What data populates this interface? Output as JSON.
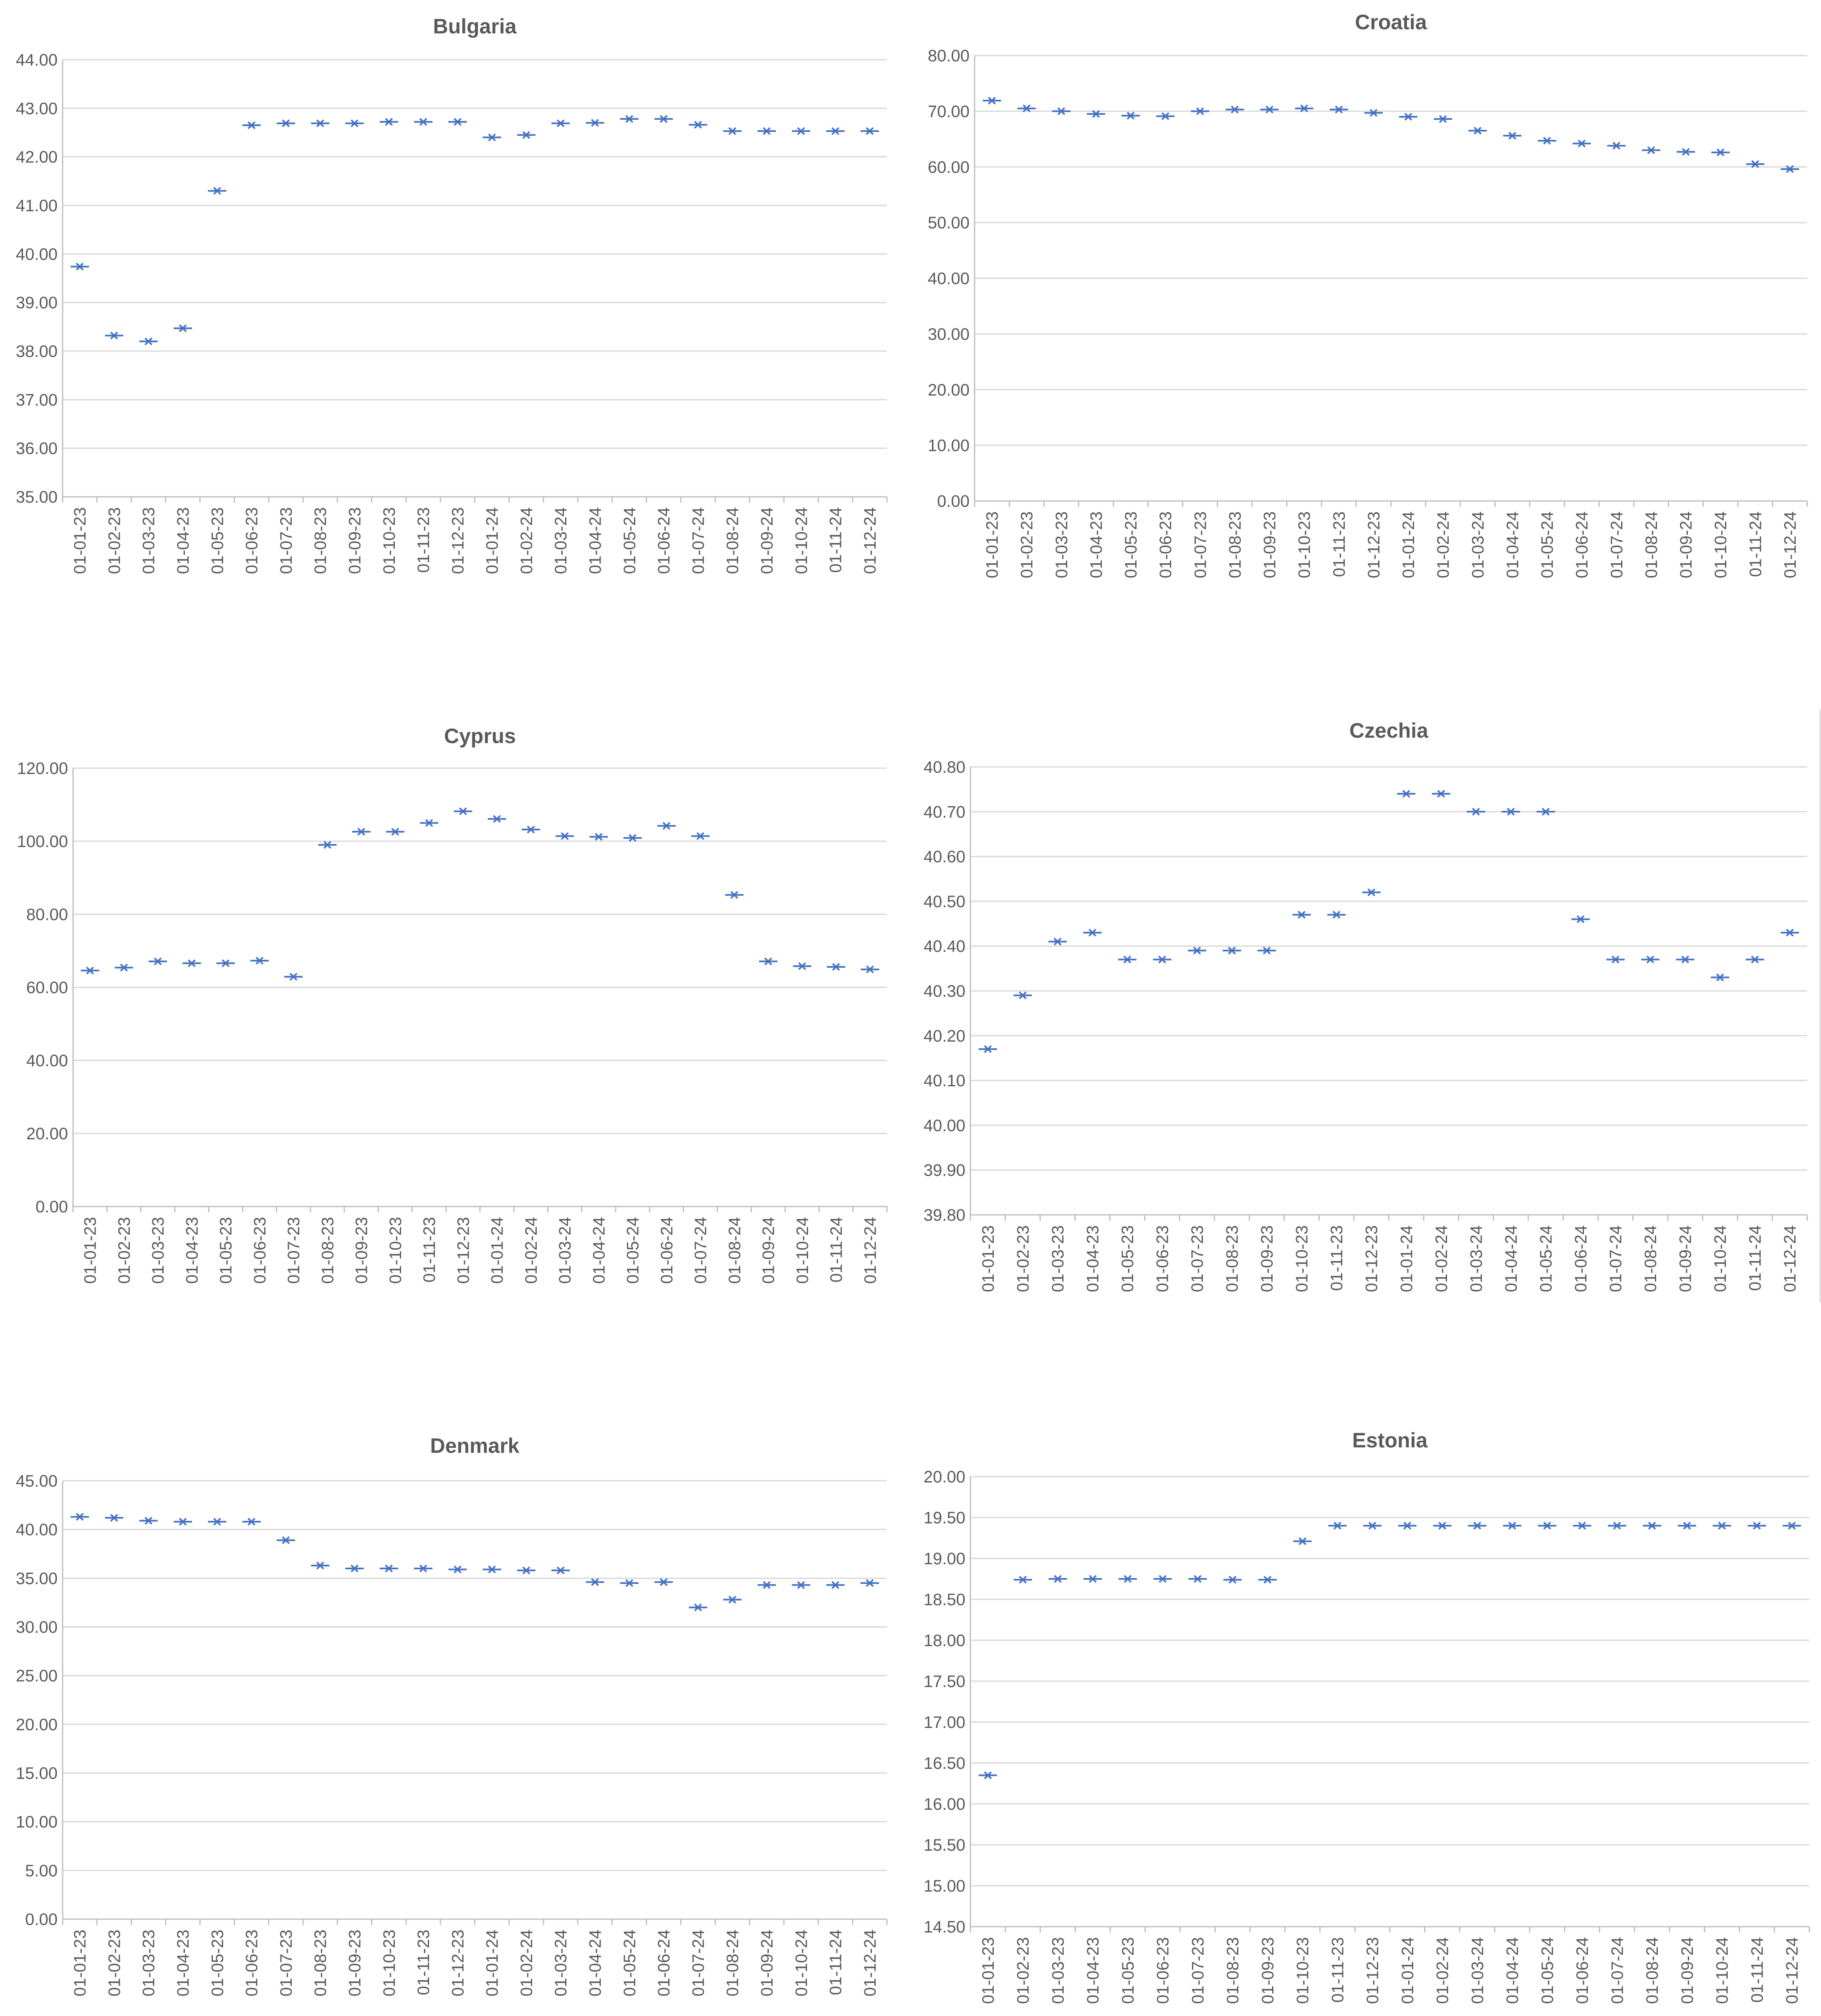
{
  "colors": {
    "marker": "#4472c4",
    "grid": "#d9d9d9",
    "text": "#595959"
  },
  "chart_data": [
    {
      "type": "scatter",
      "title": "Bulgaria",
      "categories": [
        "01-01-23",
        "01-02-23",
        "01-03-23",
        "01-04-23",
        "01-05-23",
        "01-06-23",
        "01-07-23",
        "01-08-23",
        "01-09-23",
        "01-10-23",
        "01-11-23",
        "01-12-23",
        "01-01-24",
        "01-02-24",
        "01-03-24",
        "01-04-24",
        "01-05-24",
        "01-06-24",
        "01-07-24",
        "01-08-24",
        "01-09-24",
        "01-10-24",
        "01-11-24",
        "01-12-24"
      ],
      "values": [
        39.74,
        38.32,
        38.2,
        38.47,
        41.3,
        42.65,
        42.69,
        42.69,
        42.69,
        42.72,
        42.72,
        42.72,
        42.4,
        42.45,
        42.69,
        42.7,
        42.78,
        42.78,
        42.66,
        42.53,
        42.53,
        42.53,
        42.53,
        42.53
      ],
      "ylim": [
        35.0,
        44.0
      ],
      "yticks": [
        "35.00",
        "36.00",
        "37.00",
        "38.00",
        "39.00",
        "40.00",
        "41.00",
        "42.00",
        "43.00",
        "44.00"
      ],
      "grid": true
    },
    {
      "type": "scatter",
      "title": "Croatia",
      "categories": [
        "01-01-23",
        "01-02-23",
        "01-03-23",
        "01-04-23",
        "01-05-23",
        "01-06-23",
        "01-07-23",
        "01-08-23",
        "01-09-23",
        "01-10-23",
        "01-11-23",
        "01-12-23",
        "01-01-24",
        "01-02-24",
        "01-03-24",
        "01-04-24",
        "01-05-24",
        "01-06-24",
        "01-07-24",
        "01-08-24",
        "01-09-24",
        "01-10-24",
        "01-11-24",
        "01-12-24"
      ],
      "values": [
        71.9,
        70.5,
        70.0,
        69.5,
        69.2,
        69.1,
        70.0,
        70.3,
        70.3,
        70.5,
        70.3,
        69.7,
        69.0,
        68.6,
        66.5,
        65.6,
        64.7,
        64.2,
        63.8,
        63.0,
        62.7,
        62.6,
        60.5,
        59.6
      ],
      "ylim": [
        0.0,
        80.0
      ],
      "yticks": [
        "0.00",
        "10.00",
        "20.00",
        "30.00",
        "40.00",
        "50.00",
        "60.00",
        "70.00",
        "80.00"
      ],
      "grid": true
    },
    {
      "type": "scatter",
      "title": "Cyprus",
      "categories": [
        "01-01-23",
        "01-02-23",
        "01-03-23",
        "01-04-23",
        "01-05-23",
        "01-06-23",
        "01-07-23",
        "01-08-23",
        "01-09-23",
        "01-10-23",
        "01-11-23",
        "01-12-23",
        "01-01-24",
        "01-02-24",
        "01-03-24",
        "01-04-24",
        "01-05-24",
        "01-06-24",
        "01-07-24",
        "01-08-24",
        "01-09-24",
        "01-10-24",
        "01-11-24",
        "01-12-24"
      ],
      "values": [
        64.6,
        65.4,
        67.1,
        66.6,
        66.6,
        67.3,
        62.9,
        99.0,
        102.6,
        102.6,
        105.0,
        108.2,
        106.1,
        103.2,
        101.4,
        101.2,
        100.9,
        104.2,
        101.4,
        85.3,
        67.1,
        65.8,
        65.6,
        64.9
      ],
      "ylim": [
        0.0,
        120.0
      ],
      "yticks": [
        "0.00",
        "20.00",
        "40.00",
        "60.00",
        "80.00",
        "100.00",
        "120.00"
      ],
      "grid": true
    },
    {
      "type": "scatter",
      "title": "Czechia",
      "categories": [
        "01-01-23",
        "01-02-23",
        "01-03-23",
        "01-04-23",
        "01-05-23",
        "01-06-23",
        "01-07-23",
        "01-08-23",
        "01-09-23",
        "01-10-23",
        "01-11-23",
        "01-12-23",
        "01-01-24",
        "01-02-24",
        "01-03-24",
        "01-04-24",
        "01-05-24",
        "01-06-24",
        "01-07-24",
        "01-08-24",
        "01-09-24",
        "01-10-24",
        "01-11-24",
        "01-12-24"
      ],
      "values": [
        40.17,
        40.29,
        40.41,
        40.43,
        40.37,
        40.37,
        40.39,
        40.39,
        40.39,
        40.47,
        40.47,
        40.52,
        40.74,
        40.74,
        40.7,
        40.7,
        40.7,
        40.46,
        40.37,
        40.37,
        40.37,
        40.33,
        40.37,
        40.43
      ],
      "ylim": [
        39.8,
        40.8
      ],
      "yticks": [
        "39.80",
        "39.90",
        "40.00",
        "40.10",
        "40.20",
        "40.30",
        "40.40",
        "40.50",
        "40.60",
        "40.70",
        "40.80"
      ],
      "grid": true
    },
    {
      "type": "scatter",
      "title": "Denmark",
      "categories": [
        "01-01-23",
        "01-02-23",
        "01-03-23",
        "01-04-23",
        "01-05-23",
        "01-06-23",
        "01-07-23",
        "01-08-23",
        "01-09-23",
        "01-10-23",
        "01-11-23",
        "01-12-23",
        "01-01-24",
        "01-02-24",
        "01-03-24",
        "01-04-24",
        "01-05-24",
        "01-06-24",
        "01-07-24",
        "01-08-24",
        "01-09-24",
        "01-10-24",
        "01-11-24",
        "01-12-24"
      ],
      "values": [
        41.3,
        41.2,
        40.9,
        40.8,
        40.8,
        40.8,
        38.9,
        36.3,
        36.0,
        36.0,
        36.0,
        35.9,
        35.9,
        35.8,
        35.8,
        34.6,
        34.5,
        34.6,
        32.0,
        32.8,
        34.3,
        34.3,
        34.3,
        34.5
      ],
      "ylim": [
        0.0,
        45.0
      ],
      "yticks": [
        "0.00",
        "5.00",
        "10.00",
        "15.00",
        "20.00",
        "25.00",
        "30.00",
        "35.00",
        "40.00",
        "45.00"
      ],
      "grid": true
    },
    {
      "type": "scatter",
      "title": "Estonia",
      "categories": [
        "01-01-23",
        "01-02-23",
        "01-03-23",
        "01-04-23",
        "01-05-23",
        "01-06-23",
        "01-07-23",
        "01-08-23",
        "01-09-23",
        "01-10-23",
        "01-11-23",
        "01-12-23",
        "01-01-24",
        "01-02-24",
        "01-03-24",
        "01-04-24",
        "01-05-24",
        "01-06-24",
        "01-07-24",
        "01-08-24",
        "01-09-24",
        "01-10-24",
        "01-11-24",
        "01-12-24"
      ],
      "values": [
        16.35,
        18.74,
        18.75,
        18.75,
        18.75,
        18.75,
        18.75,
        18.74,
        18.74,
        19.21,
        19.4,
        19.4,
        19.4,
        19.4,
        19.4,
        19.4,
        19.4,
        19.4,
        19.4,
        19.4,
        19.4,
        19.4,
        19.4,
        19.4
      ],
      "ylim": [
        14.5,
        20.0
      ],
      "yticks": [
        "14.50",
        "15.00",
        "15.50",
        "16.00",
        "16.50",
        "17.00",
        "17.50",
        "18.00",
        "18.50",
        "19.00",
        "19.50",
        "20.00"
      ],
      "grid": true
    }
  ]
}
